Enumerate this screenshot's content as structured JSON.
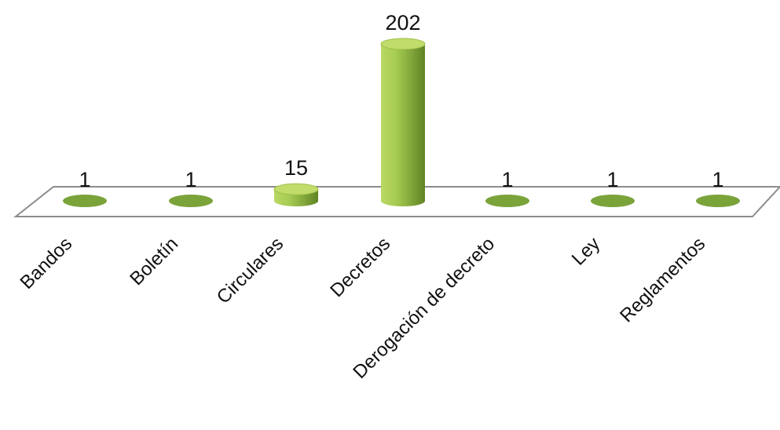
{
  "chart_data": {
    "type": "bar",
    "style": "3d-cylinder",
    "categories": [
      "Bandos",
      "Boletín",
      "Circulares",
      "Decretos",
      "Derogación de decreto",
      "Ley",
      "Reglamentos"
    ],
    "values": [
      1,
      1,
      15,
      202,
      1,
      1,
      1
    ],
    "data_labels": [
      "1",
      "1",
      "15",
      "202",
      "1",
      "1",
      "1"
    ],
    "title": "",
    "xlabel": "",
    "ylabel": "",
    "ylim": [
      0,
      202
    ],
    "grid": false,
    "legend": "none",
    "colors": {
      "bar_light": "#c2dc6c",
      "bar_mid": "#9cc04a",
      "bar_dark": "#5a7d1f",
      "bar_top": "#7aa33a",
      "floor_stroke": "#8c8c8c"
    }
  }
}
